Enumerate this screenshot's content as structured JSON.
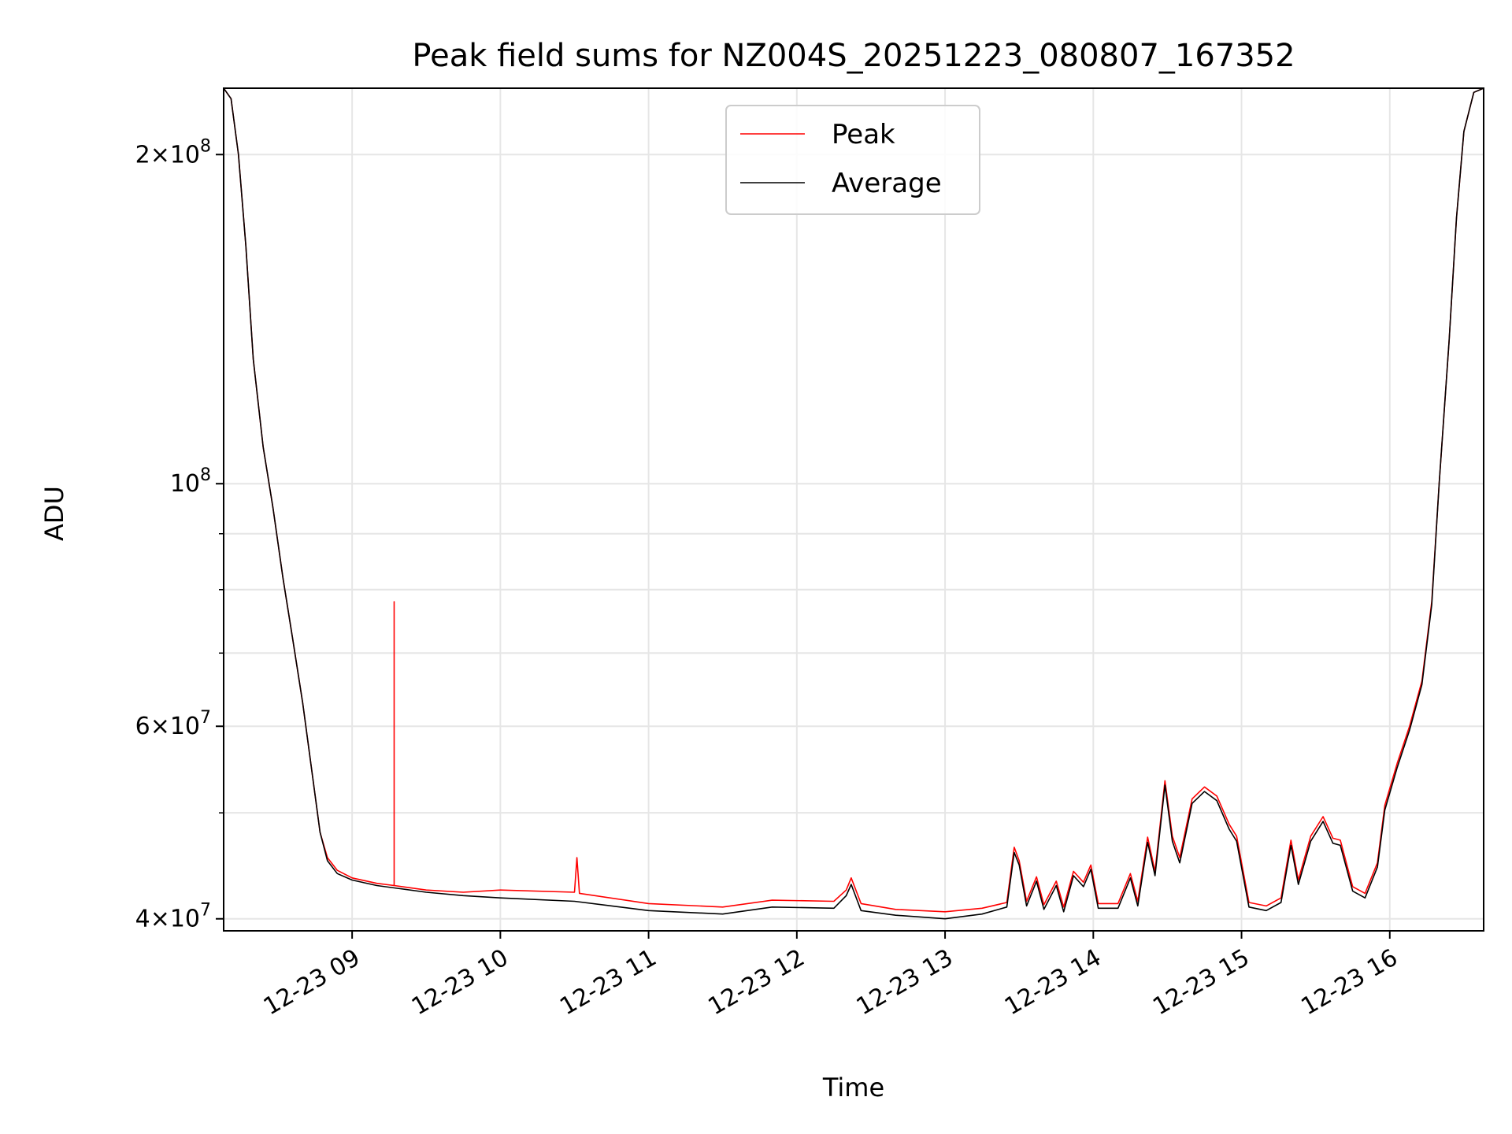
{
  "chart_data": {
    "type": "line",
    "title": "Peak field sums for NZ004S_20251223_080807_167352",
    "xlabel": "Time",
    "ylabel": "ADU",
    "yscale": "log",
    "ylim": [
      39000000,
      230000000
    ],
    "xlim": [
      "12-23 08:08",
      "12-23 16:38"
    ],
    "grid": true,
    "legend": "upper center",
    "x_ticks": [
      "12-23 09",
      "12-23 10",
      "12-23 11",
      "12-23 12",
      "12-23 13",
      "12-23 14",
      "12-23 15",
      "12-23 16"
    ],
    "y_ticks": [
      {
        "value": 40000000,
        "base": "4",
        "exp": "7"
      },
      {
        "value": 60000000,
        "base": "6",
        "exp": "7"
      },
      {
        "value": 100000000,
        "base": "10",
        "exp": "8"
      },
      {
        "value": 200000000,
        "base": "2",
        "exp": "8"
      }
    ],
    "series": [
      {
        "name": "Peak",
        "color": "#ff0000",
        "points": [
          [
            "12-23 08:08",
            230000000
          ],
          [
            "12-23 08:11",
            225000000
          ],
          [
            "12-23 08:14",
            200000000
          ],
          [
            "12-23 08:17",
            165000000
          ],
          [
            "12-23 08:20",
            130000000
          ],
          [
            "12-23 08:24",
            108000000
          ],
          [
            "12-23 08:28",
            95000000
          ],
          [
            "12-23 08:32",
            82000000
          ],
          [
            "12-23 08:36",
            72000000
          ],
          [
            "12-23 08:40",
            63000000
          ],
          [
            "12-23 08:44",
            54000000
          ],
          [
            "12-23 08:47",
            48000000
          ],
          [
            "12-23 08:50",
            45500000
          ],
          [
            "12-23 08:54",
            44300000
          ],
          [
            "12-23 09:00",
            43600000
          ],
          [
            "12-23 09:10",
            43100000
          ],
          [
            "12-23 09:17",
            42900000
          ],
          [
            "12-23 09:17",
            78000000
          ],
          [
            "12-23 09:17",
            42900000
          ],
          [
            "12-23 09:30",
            42500000
          ],
          [
            "12-23 09:45",
            42300000
          ],
          [
            "12-23 10:00",
            42500000
          ],
          [
            "12-23 10:30",
            42300000
          ],
          [
            "12-23 10:31",
            45500000
          ],
          [
            "12-23 10:32",
            42200000
          ],
          [
            "12-23 11:00",
            41300000
          ],
          [
            "12-23 11:30",
            41000000
          ],
          [
            "12-23 11:50",
            41600000
          ],
          [
            "12-23 12:15",
            41500000
          ],
          [
            "12-23 12:20",
            42500000
          ],
          [
            "12-23 12:22",
            43600000
          ],
          [
            "12-23 12:26",
            41300000
          ],
          [
            "12-23 12:40",
            40800000
          ],
          [
            "12-23 13:00",
            40600000
          ],
          [
            "12-23 13:15",
            40900000
          ],
          [
            "12-23 13:25",
            41400000
          ],
          [
            "12-23 13:28",
            46500000
          ],
          [
            "12-23 13:30",
            45200000
          ],
          [
            "12-23 13:33",
            41500000
          ],
          [
            "12-23 13:37",
            43700000
          ],
          [
            "12-23 13:40",
            41200000
          ],
          [
            "12-23 13:45",
            43300000
          ],
          [
            "12-23 13:48",
            41000000
          ],
          [
            "12-23 13:52",
            44200000
          ],
          [
            "12-23 13:56",
            43200000
          ],
          [
            "12-23 13:59",
            44800000
          ],
          [
            "12-23 14:02",
            41300000
          ],
          [
            "12-23 14:10",
            41300000
          ],
          [
            "12-23 14:15",
            44000000
          ],
          [
            "12-23 14:18",
            41500000
          ],
          [
            "12-23 14:22",
            47500000
          ],
          [
            "12-23 14:25",
            44200000
          ],
          [
            "12-23 14:29",
            53500000
          ],
          [
            "12-23 14:32",
            47600000
          ],
          [
            "12-23 14:35",
            45500000
          ],
          [
            "12-23 14:40",
            51500000
          ],
          [
            "12-23 14:45",
            52800000
          ],
          [
            "12-23 14:50",
            51800000
          ],
          [
            "12-23 14:55",
            48800000
          ],
          [
            "12-23 14:58",
            47600000
          ],
          [
            "12-23 15:03",
            41400000
          ],
          [
            "12-23 15:10",
            41100000
          ],
          [
            "12-23 15:16",
            41800000
          ],
          [
            "12-23 15:20",
            47200000
          ],
          [
            "12-23 15:23",
            43400000
          ],
          [
            "12-23 15:28",
            47600000
          ],
          [
            "12-23 15:33",
            49600000
          ],
          [
            "12-23 15:37",
            47400000
          ],
          [
            "12-23 15:40",
            47200000
          ],
          [
            "12-23 15:45",
            42800000
          ],
          [
            "12-23 15:50",
            42200000
          ],
          [
            "12-23 15:55",
            45000000
          ],
          [
            "12-23 15:58",
            50800000
          ],
          [
            "12-23 16:03",
            55500000
          ],
          [
            "12-23 16:08",
            60000000
          ],
          [
            "12-23 16:13",
            66000000
          ],
          [
            "12-23 16:17",
            78000000
          ],
          [
            "12-23 16:20",
            100000000
          ],
          [
            "12-23 16:24",
            135000000
          ],
          [
            "12-23 16:27",
            175000000
          ],
          [
            "12-23 16:30",
            210000000
          ],
          [
            "12-23 16:34",
            228000000
          ],
          [
            "12-23 16:38",
            230000000
          ]
        ]
      },
      {
        "name": "Average",
        "color": "#000000",
        "points": [
          [
            "12-23 08:08",
            230000000
          ],
          [
            "12-23 08:11",
            225000000
          ],
          [
            "12-23 08:14",
            200000000
          ],
          [
            "12-23 08:17",
            165000000
          ],
          [
            "12-23 08:20",
            130000000
          ],
          [
            "12-23 08:24",
            108000000
          ],
          [
            "12-23 08:28",
            95000000
          ],
          [
            "12-23 08:32",
            82000000
          ],
          [
            "12-23 08:36",
            72000000
          ],
          [
            "12-23 08:40",
            63000000
          ],
          [
            "12-23 08:44",
            54000000
          ],
          [
            "12-23 08:47",
            48000000
          ],
          [
            "12-23 08:50",
            45200000
          ],
          [
            "12-23 08:54",
            44000000
          ],
          [
            "12-23 09:00",
            43400000
          ],
          [
            "12-23 09:10",
            42900000
          ],
          [
            "12-23 09:30",
            42300000
          ],
          [
            "12-23 09:45",
            42000000
          ],
          [
            "12-23 10:00",
            41800000
          ],
          [
            "12-23 10:30",
            41500000
          ],
          [
            "12-23 11:00",
            40700000
          ],
          [
            "12-23 11:30",
            40400000
          ],
          [
            "12-23 11:50",
            41000000
          ],
          [
            "12-23 12:15",
            40900000
          ],
          [
            "12-23 12:20",
            42000000
          ],
          [
            "12-23 12:22",
            43000000
          ],
          [
            "12-23 12:26",
            40700000
          ],
          [
            "12-23 12:40",
            40300000
          ],
          [
            "12-23 13:00",
            40000000
          ],
          [
            "12-23 13:15",
            40400000
          ],
          [
            "12-23 13:25",
            41000000
          ],
          [
            "12-23 13:28",
            46000000
          ],
          [
            "12-23 13:30",
            44800000
          ],
          [
            "12-23 13:33",
            41100000
          ],
          [
            "12-23 13:37",
            43300000
          ],
          [
            "12-23 13:40",
            40800000
          ],
          [
            "12-23 13:45",
            42900000
          ],
          [
            "12-23 13:48",
            40600000
          ],
          [
            "12-23 13:52",
            43800000
          ],
          [
            "12-23 13:56",
            42800000
          ],
          [
            "12-23 13:59",
            44400000
          ],
          [
            "12-23 14:02",
            40900000
          ],
          [
            "12-23 14:10",
            40900000
          ],
          [
            "12-23 14:15",
            43600000
          ],
          [
            "12-23 14:18",
            41100000
          ],
          [
            "12-23 14:22",
            47000000
          ],
          [
            "12-23 14:25",
            43800000
          ],
          [
            "12-23 14:29",
            53000000
          ],
          [
            "12-23 14:32",
            47100000
          ],
          [
            "12-23 14:35",
            45000000
          ],
          [
            "12-23 14:40",
            51000000
          ],
          [
            "12-23 14:45",
            52300000
          ],
          [
            "12-23 14:50",
            51300000
          ],
          [
            "12-23 14:55",
            48300000
          ],
          [
            "12-23 14:58",
            47100000
          ],
          [
            "12-23 15:03",
            41000000
          ],
          [
            "12-23 15:10",
            40700000
          ],
          [
            "12-23 15:16",
            41400000
          ],
          [
            "12-23 15:20",
            46700000
          ],
          [
            "12-23 15:23",
            43000000
          ],
          [
            "12-23 15:28",
            47100000
          ],
          [
            "12-23 15:33",
            49100000
          ],
          [
            "12-23 15:37",
            46900000
          ],
          [
            "12-23 15:40",
            46700000
          ],
          [
            "12-23 15:45",
            42400000
          ],
          [
            "12-23 15:50",
            41800000
          ],
          [
            "12-23 15:55",
            44600000
          ],
          [
            "12-23 15:58",
            50300000
          ],
          [
            "12-23 16:03",
            55000000
          ],
          [
            "12-23 16:08",
            59500000
          ],
          [
            "12-23 16:13",
            65500000
          ],
          [
            "12-23 16:17",
            77500000
          ],
          [
            "12-23 16:20",
            100000000
          ],
          [
            "12-23 16:24",
            135000000
          ],
          [
            "12-23 16:27",
            175000000
          ],
          [
            "12-23 16:30",
            210000000
          ],
          [
            "12-23 16:34",
            228000000
          ],
          [
            "12-23 16:38",
            230000000
          ]
        ]
      }
    ]
  }
}
